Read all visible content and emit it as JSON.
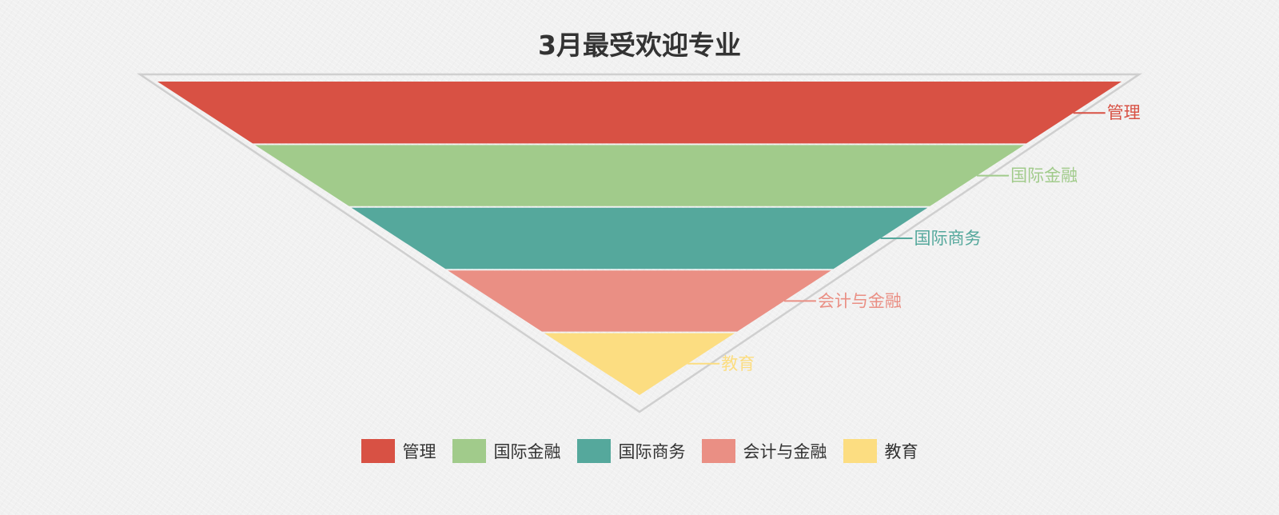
{
  "chart_data": {
    "type": "funnel",
    "title": "3月最受欢迎专业",
    "order": "ascending",
    "categories": [
      "管理",
      "国际金融",
      "国际商务",
      "会计与金融",
      "教育"
    ],
    "values": [
      100,
      80,
      60,
      40,
      20
    ],
    "colors": [
      "#d85144",
      "#a1cb8b",
      "#55a89c",
      "#ea8f84",
      "#fcdd81"
    ],
    "legend": {
      "position": "bottom",
      "items": [
        "管理",
        "国际金融",
        "国际商务",
        "会计与金融",
        "教育"
      ]
    },
    "labels_position": "right",
    "outline_color": "#cfcfcf"
  }
}
